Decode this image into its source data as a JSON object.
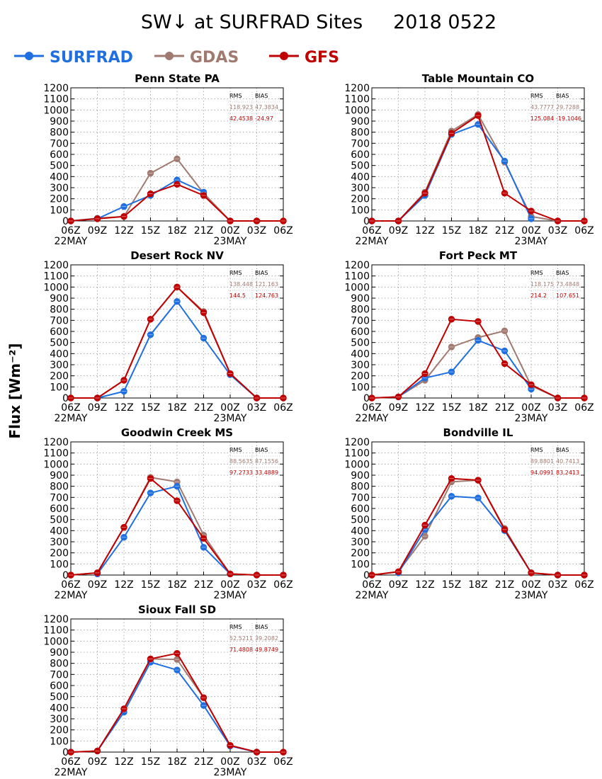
{
  "title": "SW↓ at SURFRAD Sites     2018 0522",
  "ylabel": "Flux [Wm⁻²]",
  "legend": [
    {
      "name": "SURFRAD",
      "color": "#1f6fe0"
    },
    {
      "name": "GDAS",
      "color": "#a07a70"
    },
    {
      "name": "GFS",
      "color": "#c00000"
    }
  ],
  "stats_header": {
    "rms": "RMS",
    "bias": "BIAS"
  },
  "chart_data": [
    {
      "type": "line",
      "title": "Penn State PA",
      "categories": [
        "06Z",
        "09Z",
        "12Z",
        "15Z",
        "18Z",
        "21Z",
        "00Z",
        "03Z",
        "06Z"
      ],
      "date_labels": {
        "06Z_start": "22MAY",
        "00Z": "23MAY"
      },
      "ylim": [
        0,
        1200
      ],
      "yticks": [
        0,
        100,
        200,
        300,
        400,
        500,
        600,
        700,
        800,
        900,
        1000,
        1100,
        1200
      ],
      "grid": true,
      "series": [
        {
          "name": "SURFRAD",
          "values": [
            0,
            20,
            130,
            230,
            370,
            260,
            null,
            null,
            null
          ]
        },
        {
          "name": "GDAS",
          "values": [
            0,
            25,
            40,
            430,
            560,
            250,
            0,
            0,
            0
          ]
        },
        {
          "name": "GFS",
          "values": [
            0,
            20,
            40,
            245,
            330,
            230,
            0,
            0,
            0
          ]
        }
      ],
      "stats": {
        "gdas": {
          "rms": "118.923",
          "bias": "47.3834"
        },
        "gfs": {
          "rms": "42.4538",
          "bias": "-24.97"
        }
      }
    },
    {
      "type": "line",
      "title": "Table Mountain CO",
      "categories": [
        "06Z",
        "09Z",
        "12Z",
        "15Z",
        "18Z",
        "21Z",
        "00Z",
        "03Z",
        "06Z"
      ],
      "date_labels": {
        "06Z_start": "22MAY",
        "00Z": "23MAY"
      },
      "ylim": [
        0,
        1200
      ],
      "yticks": [
        0,
        100,
        200,
        300,
        400,
        500,
        600,
        700,
        800,
        900,
        1000,
        1100,
        1200
      ],
      "grid": true,
      "series": [
        {
          "name": "SURFRAD",
          "values": [
            0,
            0,
            230,
            780,
            870,
            540,
            20,
            null,
            null
          ]
        },
        {
          "name": "GDAS",
          "values": [
            0,
            0,
            260,
            810,
            960,
            530,
            40,
            0,
            0
          ]
        },
        {
          "name": "GFS",
          "values": [
            0,
            0,
            250,
            790,
            950,
            250,
            90,
            0,
            0
          ]
        }
      ],
      "stats": {
        "gdas": {
          "rms": "43.7777",
          "bias": "29.7288"
        },
        "gfs": {
          "rms": "125.084",
          "bias": "-19.1046"
        }
      }
    },
    {
      "type": "line",
      "title": "Desert Rock NV",
      "categories": [
        "06Z",
        "09Z",
        "12Z",
        "15Z",
        "18Z",
        "21Z",
        "00Z",
        "03Z",
        "06Z"
      ],
      "date_labels": {
        "06Z_start": "22MAY",
        "00Z": "23MAY"
      },
      "ylim": [
        0,
        1200
      ],
      "yticks": [
        0,
        100,
        200,
        300,
        400,
        500,
        600,
        700,
        800,
        900,
        1000,
        1100,
        1200
      ],
      "grid": true,
      "series": [
        {
          "name": "SURFRAD",
          "values": [
            null,
            0,
            60,
            570,
            870,
            540,
            210,
            0,
            null
          ]
        },
        {
          "name": "GDAS",
          "values": [
            0,
            0,
            160,
            710,
            1000,
            780,
            220,
            0,
            0
          ]
        },
        {
          "name": "GFS",
          "values": [
            0,
            0,
            160,
            710,
            1000,
            770,
            220,
            0,
            0
          ]
        }
      ],
      "stats": {
        "gdas": {
          "rms": "138.448",
          "bias": "121.163"
        },
        "gfs": {
          "rms": "144.5",
          "bias": "124.763"
        }
      }
    },
    {
      "type": "line",
      "title": "Fort Peck MT",
      "categories": [
        "06Z",
        "09Z",
        "12Z",
        "15Z",
        "18Z",
        "21Z",
        "00Z",
        "03Z",
        "06Z"
      ],
      "date_labels": {
        "06Z_start": "22MAY",
        "00Z": "23MAY"
      },
      "ylim": [
        0,
        1200
      ],
      "yticks": [
        0,
        100,
        200,
        300,
        400,
        500,
        600,
        700,
        800,
        900,
        1000,
        1100,
        1200
      ],
      "grid": true,
      "series": [
        {
          "name": "SURFRAD",
          "values": [
            null,
            10,
            180,
            235,
            520,
            425,
            80,
            null,
            null
          ]
        },
        {
          "name": "GDAS",
          "values": [
            0,
            10,
            160,
            460,
            545,
            605,
            110,
            0,
            0
          ]
        },
        {
          "name": "GFS",
          "values": [
            0,
            10,
            220,
            710,
            690,
            310,
            120,
            0,
            0
          ]
        }
      ],
      "stats": {
        "gdas": {
          "rms": "118.175",
          "bias": "73.4848"
        },
        "gfs": {
          "rms": "214.2",
          "bias": "107.651"
        }
      }
    },
    {
      "type": "line",
      "title": "Goodwin Creek MS",
      "categories": [
        "06Z",
        "09Z",
        "12Z",
        "15Z",
        "18Z",
        "21Z",
        "00Z",
        "03Z",
        "06Z"
      ],
      "date_labels": {
        "06Z_start": "22MAY",
        "00Z": "23MAY"
      },
      "ylim": [
        0,
        1200
      ],
      "yticks": [
        0,
        100,
        200,
        300,
        400,
        500,
        600,
        700,
        800,
        900,
        1000,
        1100,
        1200
      ],
      "grid": true,
      "series": [
        {
          "name": "SURFRAD",
          "values": [
            null,
            10,
            340,
            740,
            800,
            250,
            10,
            null,
            null
          ]
        },
        {
          "name": "GDAS",
          "values": [
            0,
            20,
            430,
            880,
            840,
            360,
            10,
            0,
            0
          ]
        },
        {
          "name": "GFS",
          "values": [
            0,
            20,
            430,
            870,
            670,
            330,
            10,
            0,
            0
          ]
        }
      ],
      "stats": {
        "gdas": {
          "rms": "88.5635",
          "bias": "87.1556"
        },
        "gfs": {
          "rms": "97.2733",
          "bias": "33.4889"
        }
      }
    },
    {
      "type": "line",
      "title": "Bondville IL",
      "categories": [
        "06Z",
        "09Z",
        "12Z",
        "15Z",
        "18Z",
        "21Z",
        "00Z",
        "03Z",
        "06Z"
      ],
      "date_labels": {
        "06Z_start": "22MAY",
        "00Z": "23MAY"
      },
      "ylim": [
        0,
        1200
      ],
      "yticks": [
        0,
        100,
        200,
        300,
        400,
        500,
        600,
        700,
        800,
        900,
        1000,
        1100,
        1200
      ],
      "grid": true,
      "series": [
        {
          "name": "SURFRAD",
          "values": [
            null,
            20,
            410,
            710,
            695,
            400,
            20,
            null,
            null
          ]
        },
        {
          "name": "GDAS",
          "values": [
            0,
            30,
            350,
            840,
            855,
            420,
            20,
            0,
            0
          ]
        },
        {
          "name": "GFS",
          "values": [
            0,
            30,
            450,
            870,
            855,
            410,
            20,
            0,
            0
          ]
        }
      ],
      "stats": {
        "gdas": {
          "rms": "89.8801",
          "bias": "40.7413"
        },
        "gfs": {
          "rms": "94.0991",
          "bias": "83.2413"
        }
      }
    },
    {
      "type": "line",
      "title": "Sioux Fall SD",
      "categories": [
        "06Z",
        "09Z",
        "12Z",
        "15Z",
        "18Z",
        "21Z",
        "00Z",
        "03Z",
        "06Z"
      ],
      "date_labels": {
        "06Z_start": "22MAY",
        "00Z": "23MAY"
      },
      "ylim": [
        0,
        1200
      ],
      "yticks": [
        0,
        100,
        200,
        300,
        400,
        500,
        600,
        700,
        800,
        900,
        1000,
        1100,
        1200
      ],
      "grid": true,
      "series": [
        {
          "name": "SURFRAD",
          "values": [
            null,
            10,
            360,
            810,
            740,
            420,
            55,
            0,
            null
          ]
        },
        {
          "name": "GDAS",
          "values": [
            0,
            10,
            390,
            840,
            835,
            490,
            60,
            0,
            0
          ]
        },
        {
          "name": "GFS",
          "values": [
            0,
            10,
            390,
            840,
            890,
            490,
            60,
            0,
            0
          ]
        }
      ],
      "stats": {
        "gdas": {
          "rms": "52.5211",
          "bias": "39.2082"
        },
        "gfs": {
          "rms": "71.4808",
          "bias": "49.8749"
        }
      }
    }
  ]
}
